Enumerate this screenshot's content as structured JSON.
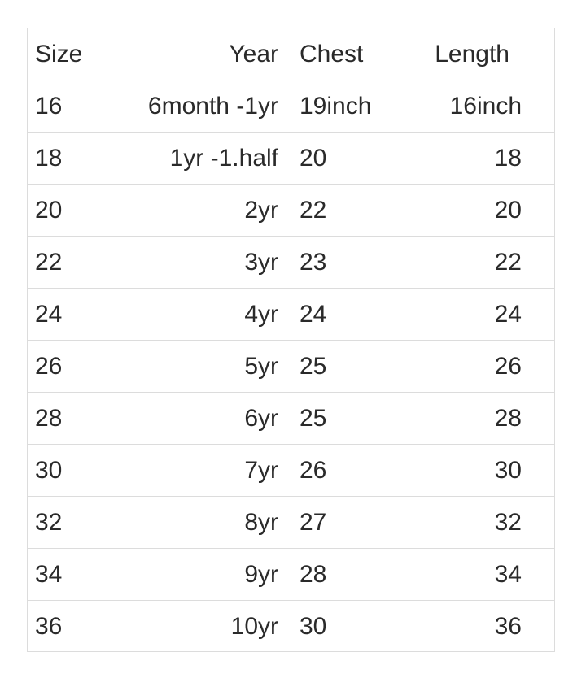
{
  "table": {
    "headers": [
      "Size",
      "Year",
      "Chest",
      "Length"
    ],
    "rows": [
      [
        "16",
        "6month -1yr",
        "19inch",
        "16inch"
      ],
      [
        "18",
        "1yr -1.half",
        "20",
        "18"
      ],
      [
        "20",
        "2yr",
        "22",
        "20"
      ],
      [
        "22",
        "3yr",
        "23",
        "22"
      ],
      [
        "24",
        "4yr",
        "24",
        "24"
      ],
      [
        "26",
        "5yr",
        "25",
        "26"
      ],
      [
        "28",
        "6yr",
        "25",
        "28"
      ],
      [
        "30",
        "7yr",
        "26",
        "30"
      ],
      [
        "32",
        "8yr",
        "27",
        "32"
      ],
      [
        "34",
        "9yr",
        "28",
        "34"
      ],
      [
        "36",
        "10yr",
        "30",
        "36"
      ]
    ]
  }
}
